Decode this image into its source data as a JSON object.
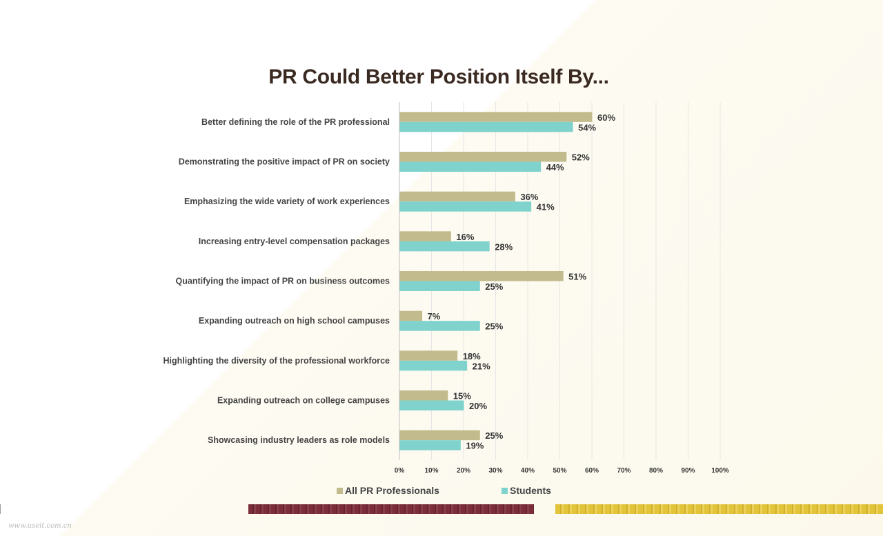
{
  "chart_data": {
    "type": "bar",
    "orientation": "horizontal",
    "title": "PR Could Better Position Itself By...",
    "categories": [
      "Better defining the role of the PR professional",
      "Demonstrating the positive impact of PR on society",
      "Emphasizing the wide variety of work experiences",
      "Increasing entry-level compensation packages",
      "Quantifying the impact of PR on business outcomes",
      "Expanding outreach on high school campuses",
      "Highlighting the diversity of the professional workforce",
      "Expanding outreach on college campuses",
      "Showcasing industry leaders as role models"
    ],
    "series": [
      {
        "name": "All PR Professionals",
        "color": "#c2bb8d",
        "values": [
          60,
          52,
          36,
          16,
          51,
          7,
          18,
          15,
          25
        ],
        "labels": [
          "60%",
          "52%",
          "36%",
          "16%",
          "51%",
          "7%",
          "18%",
          "15%",
          "25%"
        ]
      },
      {
        "name": "Students",
        "color": "#7fd3cc",
        "values": [
          54,
          44,
          41,
          28,
          25,
          25,
          21,
          20,
          19
        ],
        "labels": [
          "54%",
          "44%",
          "41%",
          "28%",
          "25%",
          "25%",
          "21%",
          "20%",
          "19%"
        ]
      }
    ],
    "xlim": [
      0,
      100
    ],
    "xticks": [
      0,
      10,
      20,
      30,
      40,
      50,
      60,
      70,
      80,
      90,
      100
    ],
    "xtick_labels": [
      "0%",
      "10%",
      "20%",
      "30%",
      "40%",
      "50%",
      "60%",
      "70%",
      "80%",
      "90%",
      "100%"
    ],
    "grid": true,
    "legend_position": "bottom",
    "xlabel": "",
    "ylabel": ""
  },
  "footer": {
    "watermark": "www.useit.com.cn"
  }
}
